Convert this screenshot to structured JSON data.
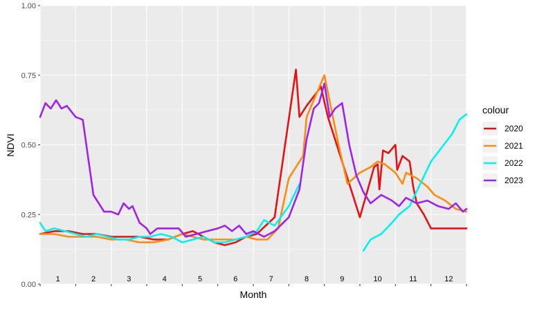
{
  "chart_data": {
    "type": "line",
    "xlabel": "Month",
    "ylabel": "NDVI",
    "xlim": [
      1,
      13
    ],
    "ylim": [
      0,
      1
    ],
    "yticks": [
      0,
      0.25,
      0.5,
      0.75,
      1
    ],
    "ytick_labels": [
      "0.00",
      "0.25",
      "0.50",
      "0.75",
      "1.00"
    ],
    "month_labels": [
      "1",
      "2",
      "3",
      "4",
      "5",
      "6",
      "7",
      "8",
      "9",
      "10",
      "11",
      "12"
    ],
    "background": "#ebebeb",
    "grid": true,
    "legend": {
      "title": "colour",
      "position": "right"
    },
    "series": [
      {
        "name": "2020",
        "color": "#e81010",
        "points": [
          [
            1.0,
            0.18
          ],
          [
            1.4,
            0.19
          ],
          [
            1.8,
            0.19
          ],
          [
            2.2,
            0.18
          ],
          [
            2.6,
            0.18
          ],
          [
            3.0,
            0.17
          ],
          [
            3.4,
            0.17
          ],
          [
            3.8,
            0.17
          ],
          [
            4.2,
            0.16
          ],
          [
            4.6,
            0.16
          ],
          [
            5.0,
            0.18
          ],
          [
            5.3,
            0.19
          ],
          [
            5.6,
            0.17
          ],
          [
            5.9,
            0.15
          ],
          [
            6.2,
            0.14
          ],
          [
            6.5,
            0.15
          ],
          [
            6.8,
            0.17
          ],
          [
            7.1,
            0.18
          ],
          [
            7.6,
            0.24
          ],
          [
            8.2,
            0.77
          ],
          [
            8.3,
            0.6
          ],
          [
            8.5,
            0.64
          ],
          [
            8.8,
            0.69
          ],
          [
            8.9,
            0.71
          ],
          [
            9.1,
            0.6
          ],
          [
            9.4,
            0.48
          ],
          [
            9.7,
            0.36
          ],
          [
            10.0,
            0.24
          ],
          [
            10.2,
            0.33
          ],
          [
            10.4,
            0.42
          ],
          [
            10.5,
            0.43
          ],
          [
            10.55,
            0.34
          ],
          [
            10.65,
            0.48
          ],
          [
            10.8,
            0.47
          ],
          [
            11.0,
            0.5
          ],
          [
            11.05,
            0.41
          ],
          [
            11.2,
            0.46
          ],
          [
            11.4,
            0.44
          ],
          [
            11.5,
            0.35
          ],
          [
            11.6,
            0.29
          ],
          [
            11.8,
            0.25
          ],
          [
            12.0,
            0.2
          ],
          [
            12.3,
            0.2
          ],
          [
            12.7,
            0.2
          ],
          [
            13.0,
            0.2
          ]
        ]
      },
      {
        "name": "2021",
        "color": "#fd8b11",
        "points": [
          [
            1.0,
            0.18
          ],
          [
            1.4,
            0.18
          ],
          [
            1.8,
            0.17
          ],
          [
            2.2,
            0.17
          ],
          [
            2.6,
            0.17
          ],
          [
            3.0,
            0.16
          ],
          [
            3.4,
            0.16
          ],
          [
            3.8,
            0.15
          ],
          [
            4.2,
            0.15
          ],
          [
            4.6,
            0.16
          ],
          [
            5.0,
            0.18
          ],
          [
            5.3,
            0.17
          ],
          [
            5.6,
            0.16
          ],
          [
            5.9,
            0.16
          ],
          [
            6.2,
            0.16
          ],
          [
            6.5,
            0.16
          ],
          [
            6.8,
            0.17
          ],
          [
            7.1,
            0.16
          ],
          [
            7.4,
            0.16
          ],
          [
            7.7,
            0.2
          ],
          [
            8.0,
            0.38
          ],
          [
            8.4,
            0.46
          ],
          [
            8.5,
            0.6
          ],
          [
            9.0,
            0.75
          ],
          [
            9.4,
            0.5
          ],
          [
            9.65,
            0.36
          ],
          [
            10.0,
            0.4
          ],
          [
            10.3,
            0.42
          ],
          [
            10.5,
            0.44
          ],
          [
            10.7,
            0.43
          ],
          [
            11.0,
            0.4
          ],
          [
            11.2,
            0.36
          ],
          [
            11.3,
            0.4
          ],
          [
            11.6,
            0.38
          ],
          [
            11.9,
            0.35
          ],
          [
            12.1,
            0.32
          ],
          [
            12.4,
            0.3
          ],
          [
            12.7,
            0.27
          ],
          [
            13.0,
            0.26
          ]
        ]
      },
      {
        "name": "2022",
        "color": "#00f2f2",
        "points": [
          [
            1.0,
            0.22
          ],
          [
            1.15,
            0.19
          ],
          [
            1.4,
            0.2
          ],
          [
            1.7,
            0.19
          ],
          [
            2.0,
            0.18
          ],
          [
            2.3,
            0.17
          ],
          [
            2.6,
            0.18
          ],
          [
            2.9,
            0.17
          ],
          [
            3.2,
            0.16
          ],
          [
            3.5,
            0.16
          ],
          [
            3.8,
            0.17
          ],
          [
            4.1,
            0.17
          ],
          [
            4.4,
            0.18
          ],
          [
            4.7,
            0.17
          ],
          [
            5.0,
            0.15
          ],
          [
            5.3,
            0.16
          ],
          [
            5.6,
            0.17
          ],
          [
            5.9,
            0.15
          ],
          [
            6.2,
            0.15
          ],
          [
            6.5,
            0.16
          ],
          [
            6.8,
            0.17
          ],
          [
            7.1,
            0.19
          ],
          [
            7.3,
            0.23
          ],
          [
            7.6,
            0.21
          ],
          [
            8.0,
            0.28
          ],
          [
            8.3,
            0.36
          ]
        ]
      },
      {
        "name": "2022",
        "color": "#00f2f2",
        "points": [
          [
            10.1,
            0.12
          ],
          [
            10.3,
            0.16
          ],
          [
            10.6,
            0.18
          ],
          [
            10.9,
            0.22
          ],
          [
            11.1,
            0.25
          ],
          [
            11.4,
            0.28
          ],
          [
            11.7,
            0.36
          ],
          [
            12.0,
            0.44
          ],
          [
            12.3,
            0.49
          ],
          [
            12.6,
            0.54
          ],
          [
            12.8,
            0.59
          ],
          [
            13.0,
            0.61
          ]
        ]
      },
      {
        "name": "2023",
        "color": "#a020f0",
        "points": [
          [
            1.0,
            0.6
          ],
          [
            1.15,
            0.65
          ],
          [
            1.3,
            0.63
          ],
          [
            1.45,
            0.66
          ],
          [
            1.6,
            0.63
          ],
          [
            1.75,
            0.64
          ],
          [
            2.0,
            0.6
          ],
          [
            2.2,
            0.59
          ],
          [
            2.5,
            0.32
          ],
          [
            2.8,
            0.26
          ],
          [
            3.0,
            0.26
          ],
          [
            3.2,
            0.25
          ],
          [
            3.35,
            0.29
          ],
          [
            3.5,
            0.27
          ],
          [
            3.6,
            0.28
          ],
          [
            3.8,
            0.22
          ],
          [
            4.0,
            0.2
          ],
          [
            4.1,
            0.18
          ],
          [
            4.3,
            0.2
          ],
          [
            4.6,
            0.2
          ],
          [
            4.9,
            0.2
          ],
          [
            5.1,
            0.17
          ],
          [
            5.4,
            0.18
          ],
          [
            5.7,
            0.19
          ],
          [
            6.0,
            0.2
          ],
          [
            6.2,
            0.21
          ],
          [
            6.4,
            0.19
          ],
          [
            6.6,
            0.21
          ],
          [
            6.8,
            0.18
          ],
          [
            7.0,
            0.19
          ],
          [
            7.3,
            0.17
          ],
          [
            7.6,
            0.19
          ],
          [
            8.0,
            0.24
          ],
          [
            8.3,
            0.34
          ],
          [
            8.5,
            0.52
          ],
          [
            8.7,
            0.63
          ],
          [
            8.85,
            0.65
          ],
          [
            9.0,
            0.72
          ],
          [
            9.15,
            0.6
          ],
          [
            9.3,
            0.63
          ],
          [
            9.5,
            0.65
          ],
          [
            9.7,
            0.5
          ],
          [
            9.9,
            0.39
          ],
          [
            10.1,
            0.33
          ],
          [
            10.3,
            0.29
          ],
          [
            10.6,
            0.32
          ],
          [
            10.9,
            0.3
          ],
          [
            11.1,
            0.28
          ],
          [
            11.3,
            0.31
          ],
          [
            11.6,
            0.29
          ],
          [
            11.9,
            0.3
          ],
          [
            12.2,
            0.28
          ],
          [
            12.5,
            0.27
          ],
          [
            12.7,
            0.29
          ],
          [
            12.9,
            0.26
          ],
          [
            13.0,
            0.27
          ]
        ]
      }
    ]
  }
}
